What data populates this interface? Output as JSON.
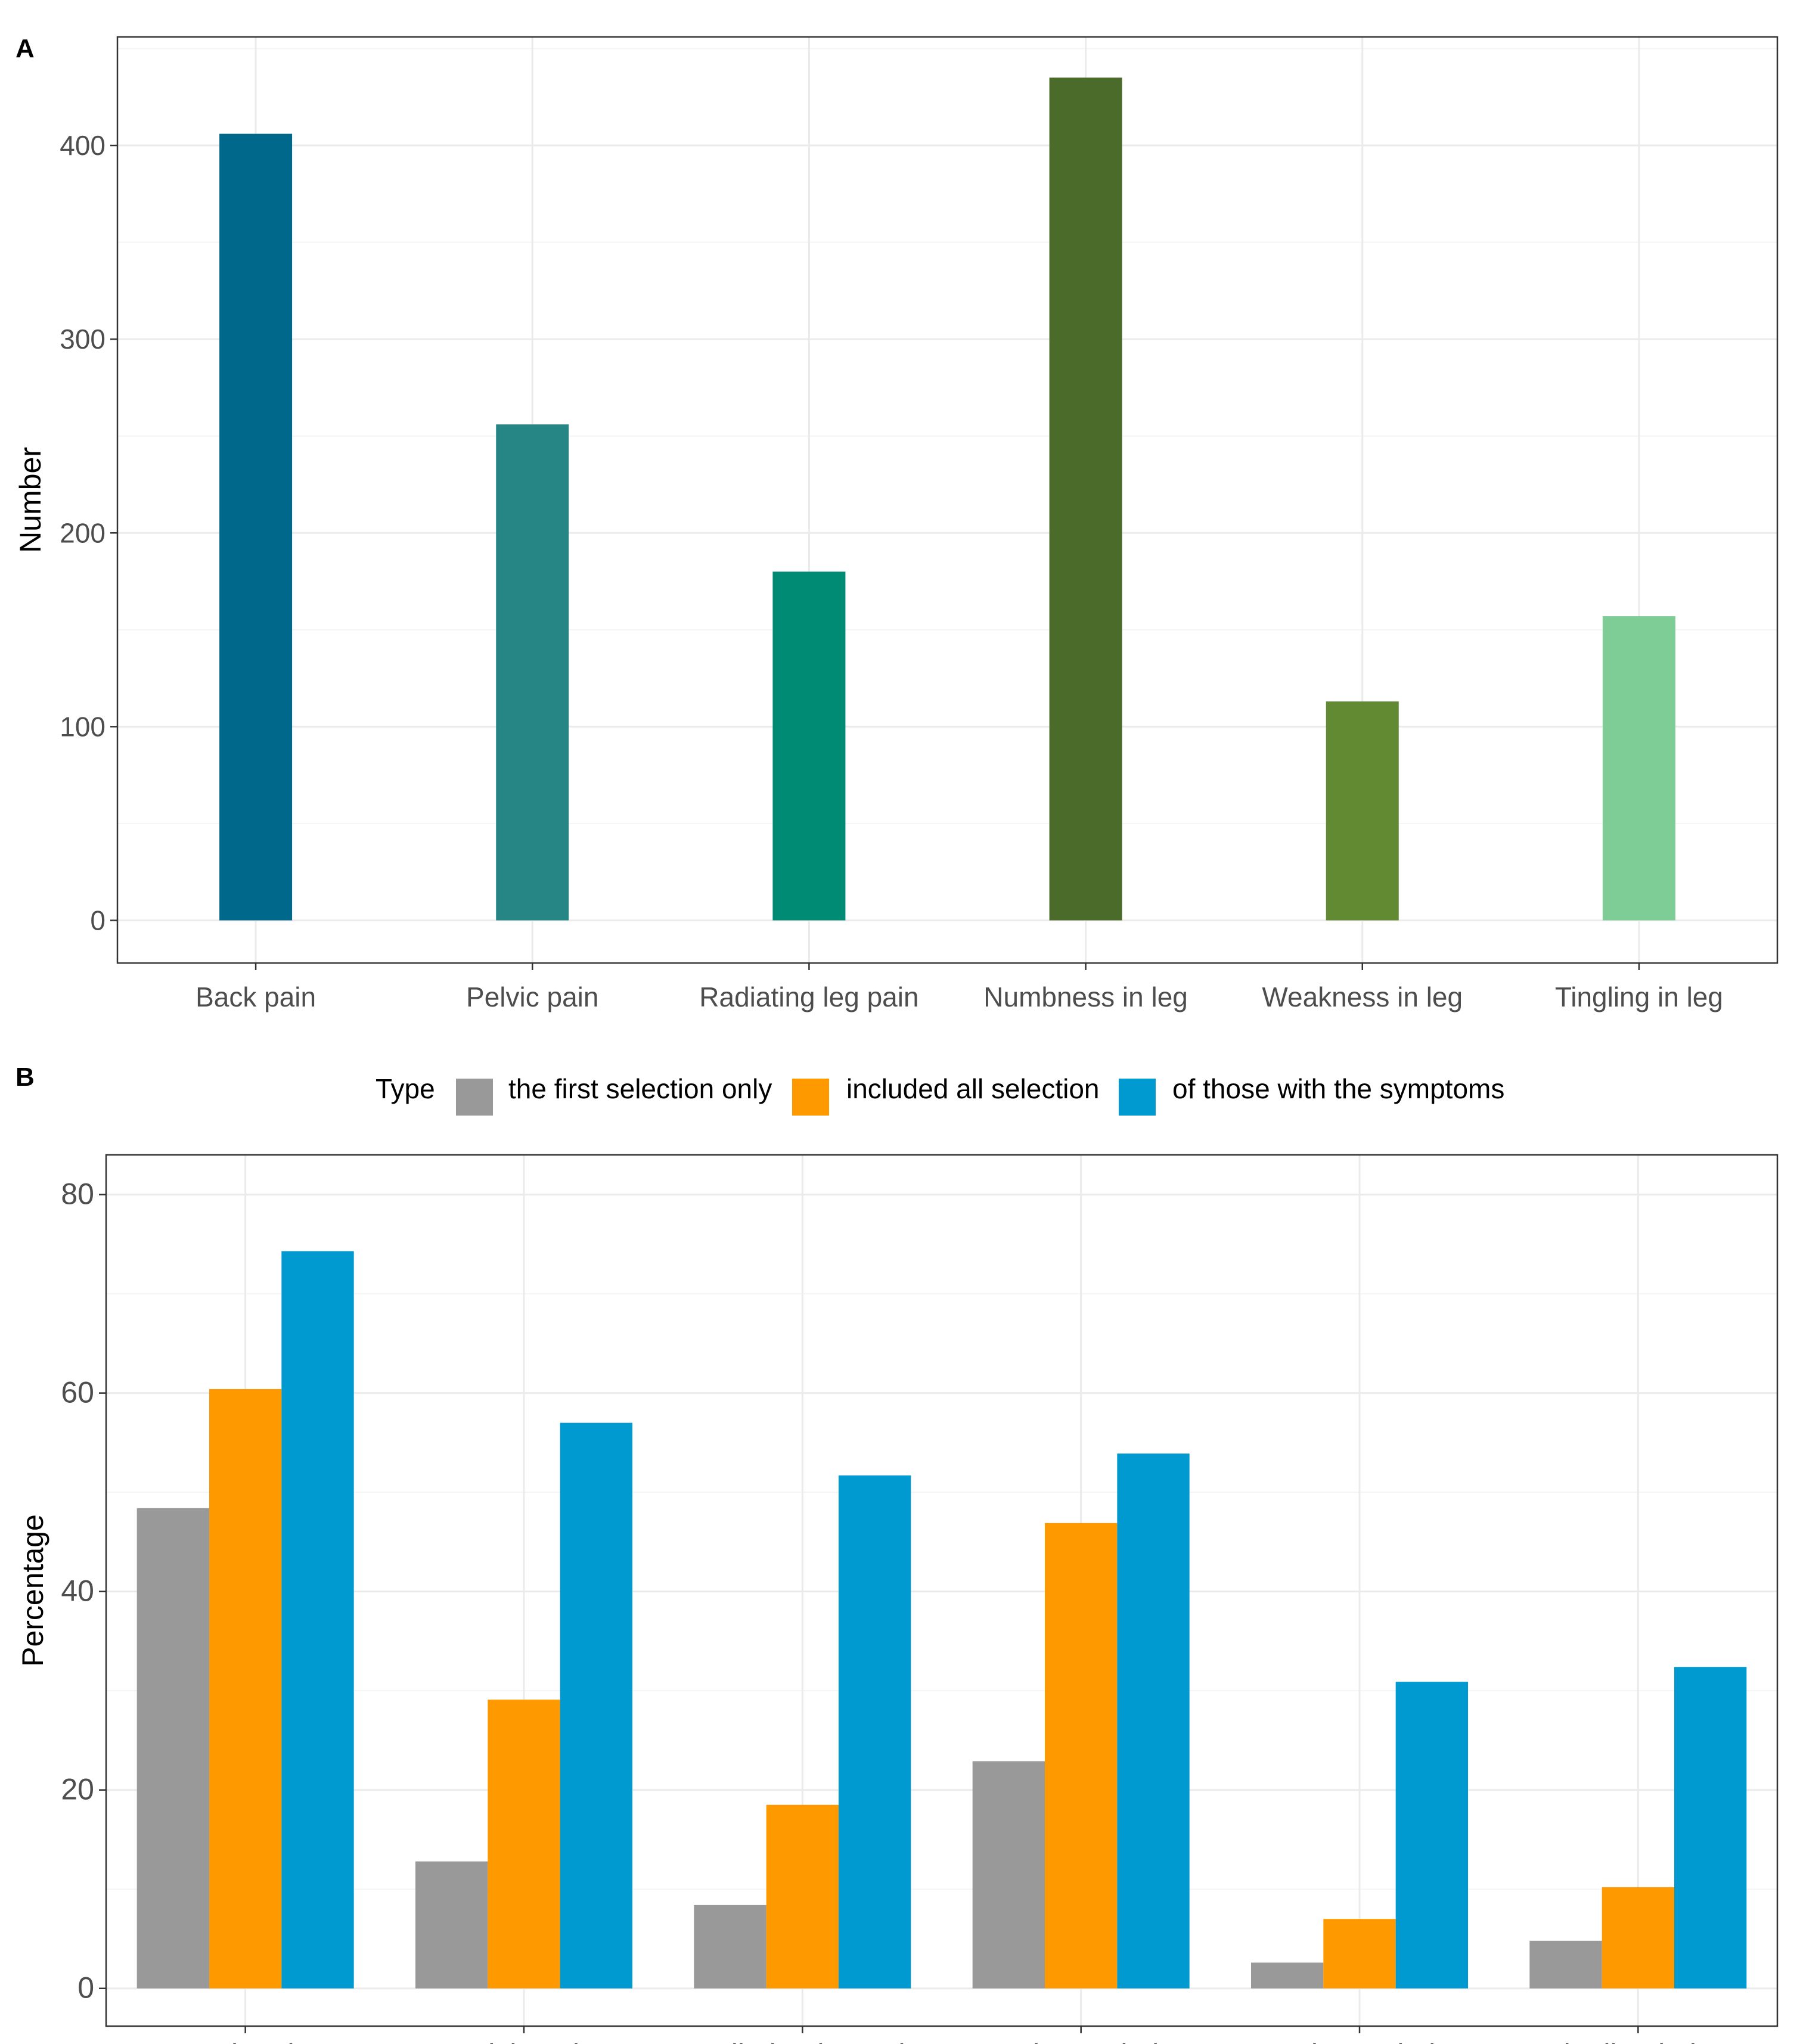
{
  "chart_data": [
    {
      "panel": "A",
      "type": "bar",
      "categories": [
        "Back pain",
        "Pelvic pain",
        "Radiating leg pain",
        "Numbness in leg",
        "Weakness in leg",
        "Tingling in leg"
      ],
      "values": [
        406,
        256,
        180,
        435,
        113,
        157
      ],
      "colors": [
        "#00688b",
        "#268585",
        "#008b74",
        "#4a6b29",
        "#628a33",
        "#7ecd97"
      ],
      "ylabel": "Number",
      "xlabel": "",
      "ylim": [
        -22,
        456
      ],
      "yticks": [
        0,
        100,
        200,
        300,
        400
      ],
      "grid": true
    },
    {
      "panel": "B",
      "type": "bar",
      "categories": [
        "Back pain",
        "Pelvic pain",
        "Radiating leg pain",
        "Numbness in leg",
        "Weakness in leg",
        "Tingling in leg"
      ],
      "legend_title": "Type",
      "legend_position": "top",
      "series": [
        {
          "name": "the first selection only",
          "color": "#999999",
          "values": [
            48.4,
            12.8,
            8.4,
            22.9,
            2.6,
            4.8
          ]
        },
        {
          "name": "included all selection",
          "color": "#ff9900",
          "values": [
            60.4,
            29.1,
            18.5,
            46.9,
            7.0,
            10.2
          ]
        },
        {
          "name": "of those with the symptoms",
          "color": "#009ad0",
          "values": [
            74.3,
            57.0,
            51.7,
            53.9,
            30.9,
            32.4
          ]
        }
      ],
      "ylabel": "Percentage",
      "xlabel": "",
      "ylim": [
        -3.8,
        84
      ],
      "yticks": [
        0,
        20,
        40,
        60,
        80
      ],
      "grid": true
    }
  ]
}
